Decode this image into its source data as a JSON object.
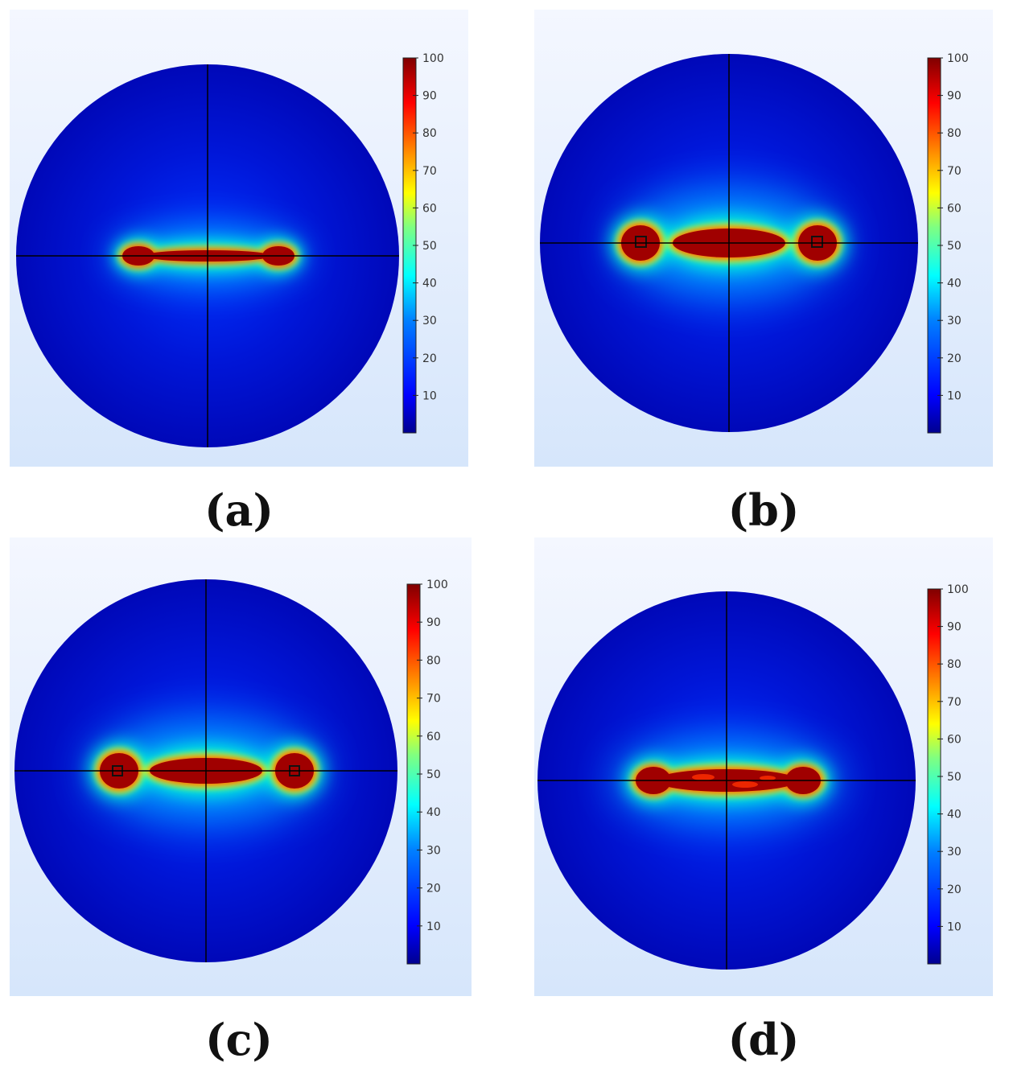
{
  "colorbar_ticks": [
    "100",
    "90",
    "80",
    "70",
    "60",
    "50",
    "40",
    "30",
    "20",
    "10"
  ],
  "colormap": [
    "#00008f",
    "#0000ff",
    "#0080ff",
    "#00ffff",
    "#80ff80",
    "#ffff00",
    "#ff8000",
    "#ff0000",
    "#800000"
  ],
  "panels": [
    {
      "id": "a",
      "caption": "(a)",
      "shape": "thin-dumbbell"
    },
    {
      "id": "b",
      "caption": "(b)",
      "shape": "bulbous-dumbbell-with-markers"
    },
    {
      "id": "c",
      "caption": "(c)",
      "shape": "bulbous-dumbbell-with-markers"
    },
    {
      "id": "d",
      "caption": "(d)",
      "shape": "thick-dumbbell-irregular"
    }
  ]
}
